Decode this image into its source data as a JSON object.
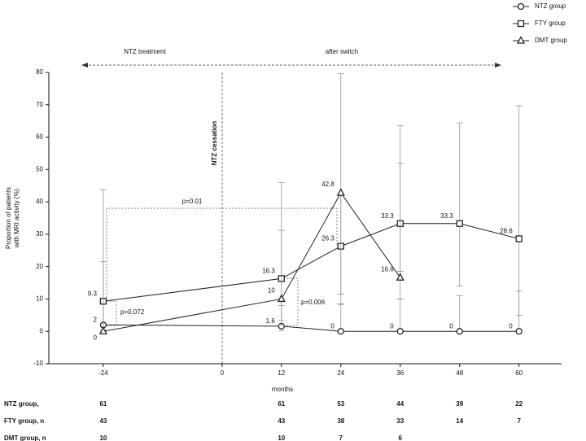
{
  "chart_data": {
    "type": "line",
    "x_label": "months",
    "y_label": [
      "Proportion of patients",
      "with MRI activity (%)"
    ],
    "x": [
      -24,
      12,
      24,
      36,
      48,
      60
    ],
    "xlim": [
      -35,
      68.6
    ],
    "xticks": [
      -24,
      0,
      12,
      24,
      36,
      48,
      60
    ],
    "ylim": [
      -10,
      80
    ],
    "yticks": [
      -10,
      0,
      10,
      20,
      30,
      40,
      50,
      60,
      70,
      80
    ],
    "legend": "upper right",
    "series": [
      {
        "name": "NTZ group",
        "color": "#222222",
        "marker": "circle",
        "values": [
          2,
          1.6,
          0,
          0,
          0,
          0
        ],
        "error_low": [
          0.3,
          0.2,
          0,
          0,
          0,
          0
        ],
        "error_high": [
          8.7,
          8,
          8.5,
          10,
          11,
          12.5
        ]
      },
      {
        "name": "FTY group",
        "color": "#222222",
        "marker": "square",
        "values": [
          9.3,
          16.3,
          26.3,
          33.3,
          33.3,
          28.6
        ],
        "error_low": [
          2.4,
          3.5,
          11.5,
          18.5,
          14,
          5
        ],
        "error_high": [
          43.8,
          45.9,
          42,
          63.5,
          64.4,
          69.7
        ]
      },
      {
        "name": "DMT group",
        "color": "#222222",
        "marker": "triangle",
        "values": [
          0,
          10,
          42.8,
          16.6,
          null,
          null
        ],
        "error_low": [
          0,
          2,
          8.3,
          10,
          null,
          null
        ],
        "error_high": [
          21.5,
          31.2,
          79.6,
          51.9,
          null,
          null
        ]
      }
    ],
    "annotations": {
      "left_period": "NTZ treatment",
      "right_period": "after switch",
      "cessation": "NTZ cessation",
      "p1": "p=0.01",
      "p2": "p=0.072",
      "p3": "p=0.006"
    },
    "n_table": [
      {
        "label": "NTZ group,",
        "counts": [
          61,
          61,
          53,
          44,
          39,
          22
        ]
      },
      {
        "label": "FTY group, n",
        "counts": [
          43,
          43,
          38,
          33,
          14,
          7
        ]
      },
      {
        "label": "DMT group, n",
        "counts": [
          10,
          10,
          7,
          6,
          null,
          null
        ]
      }
    ]
  }
}
